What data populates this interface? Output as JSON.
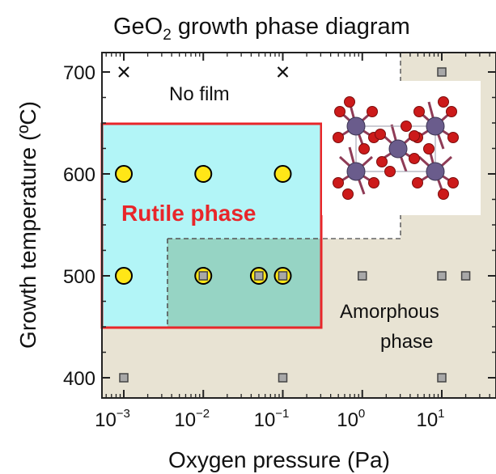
{
  "chart_data": {
    "type": "scatter",
    "title_main": "GeO",
    "title_sub": "2",
    "title_rest": " growth phase diagram",
    "xlabel": "Oxygen pressure (Pa)",
    "ylabel": "Growth temperature (ºC)",
    "x_scale": "log",
    "xlim_exponent": [
      -3.4,
      1.4
    ],
    "ylim": [
      390,
      715
    ],
    "x_ticks": [
      {
        "base": "10",
        "exp": "−3",
        "value_exp": -3
      },
      {
        "base": "10",
        "exp": "−2",
        "value_exp": -2
      },
      {
        "base": "10",
        "exp": "−1",
        "value_exp": -1
      },
      {
        "base": "10",
        "exp": "0",
        "value_exp": 0
      },
      {
        "base": "10",
        "exp": "1",
        "value_exp": 1
      }
    ],
    "y_ticks": [
      {
        "label": "400",
        "value": 400
      },
      {
        "label": "500",
        "value": 500
      },
      {
        "label": "600",
        "value": 600
      },
      {
        "label": "700",
        "value": 700
      }
    ],
    "grid": false,
    "colors": {
      "background": "#e8e3d3",
      "no_film_region": "#ffffff",
      "rutile_region": "#b2f5f7",
      "overlap_region": "#96d4c4",
      "rutile_border": "#e8262a",
      "rutile_label": "#e8262a",
      "circle_fill": "#ffe617",
      "circle_stroke": "#000000",
      "square_fill": "#a8a8a8",
      "square_stroke": "#444444",
      "ge_atom": "#6a5c8c",
      "o_atom": "#cc1a1a"
    },
    "regions": [
      {
        "name": "No film",
        "label": "No film"
      },
      {
        "name": "Rutile phase",
        "label": "Rutile phase"
      },
      {
        "name": "Amorphous phase",
        "label_line1": "Amorphous",
        "label_line2": "phase"
      }
    ],
    "series": [
      {
        "name": "Rutile",
        "marker": "circle",
        "points": [
          {
            "x": 0.001,
            "y": 600
          },
          {
            "x": 0.01,
            "y": 600
          },
          {
            "x": 0.1,
            "y": 600
          },
          {
            "x": 0.001,
            "y": 500
          }
        ]
      },
      {
        "name": "Amorphous",
        "marker": "square",
        "points": [
          {
            "x": 0.001,
            "y": 400
          },
          {
            "x": 0.1,
            "y": 400
          },
          {
            "x": 10,
            "y": 400
          },
          {
            "x": 1,
            "y": 500
          },
          {
            "x": 10,
            "y": 500
          },
          {
            "x": 20,
            "y": 500
          },
          {
            "x": 10,
            "y": 700
          }
        ]
      },
      {
        "name": "Rutile + Amorphous",
        "marker": "circle-square",
        "points": [
          {
            "x": 0.01,
            "y": 500
          },
          {
            "x": 0.05,
            "y": 500
          },
          {
            "x": 0.1,
            "y": 500
          }
        ]
      },
      {
        "name": "No film",
        "marker": "cross",
        "points": [
          {
            "x": 0.001,
            "y": 700
          },
          {
            "x": 0.1,
            "y": 700
          }
        ]
      }
    ]
  }
}
